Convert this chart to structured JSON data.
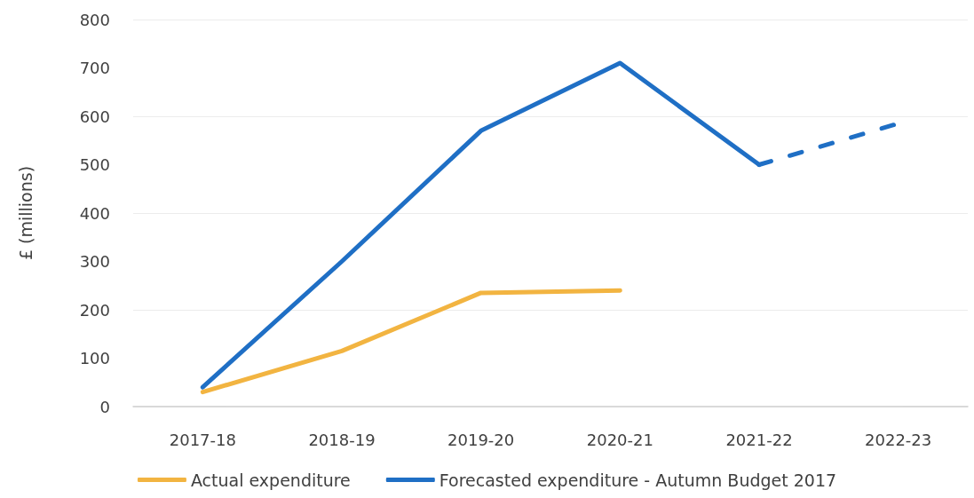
{
  "chart_data": {
    "type": "line",
    "ylabel": "£ (millions)",
    "categories": [
      "2017-18",
      "2018-19",
      "2019-20",
      "2020-21",
      "2021-22",
      "2022-23"
    ],
    "series": [
      {
        "name": "Actual expenditure",
        "color": "#f2b441",
        "line_style": "solid",
        "values": [
          30,
          115,
          235,
          240,
          null,
          null
        ]
      },
      {
        "name": "Forecasted expenditure - Autumn Budget 2017",
        "color": "#1f6fc5",
        "line_style": "solid",
        "values": [
          40,
          300,
          570,
          710,
          500,
          null
        ]
      },
      {
        "color": "#1f6fc5",
        "line_style": "dashed",
        "values": [
          null,
          null,
          null,
          null,
          500,
          585
        ]
      }
    ],
    "ylim": [
      0,
      800
    ],
    "yticks": [
      0,
      100,
      200,
      300,
      400,
      500,
      600,
      700,
      800
    ],
    "grid": "y",
    "legend": "bottom"
  }
}
